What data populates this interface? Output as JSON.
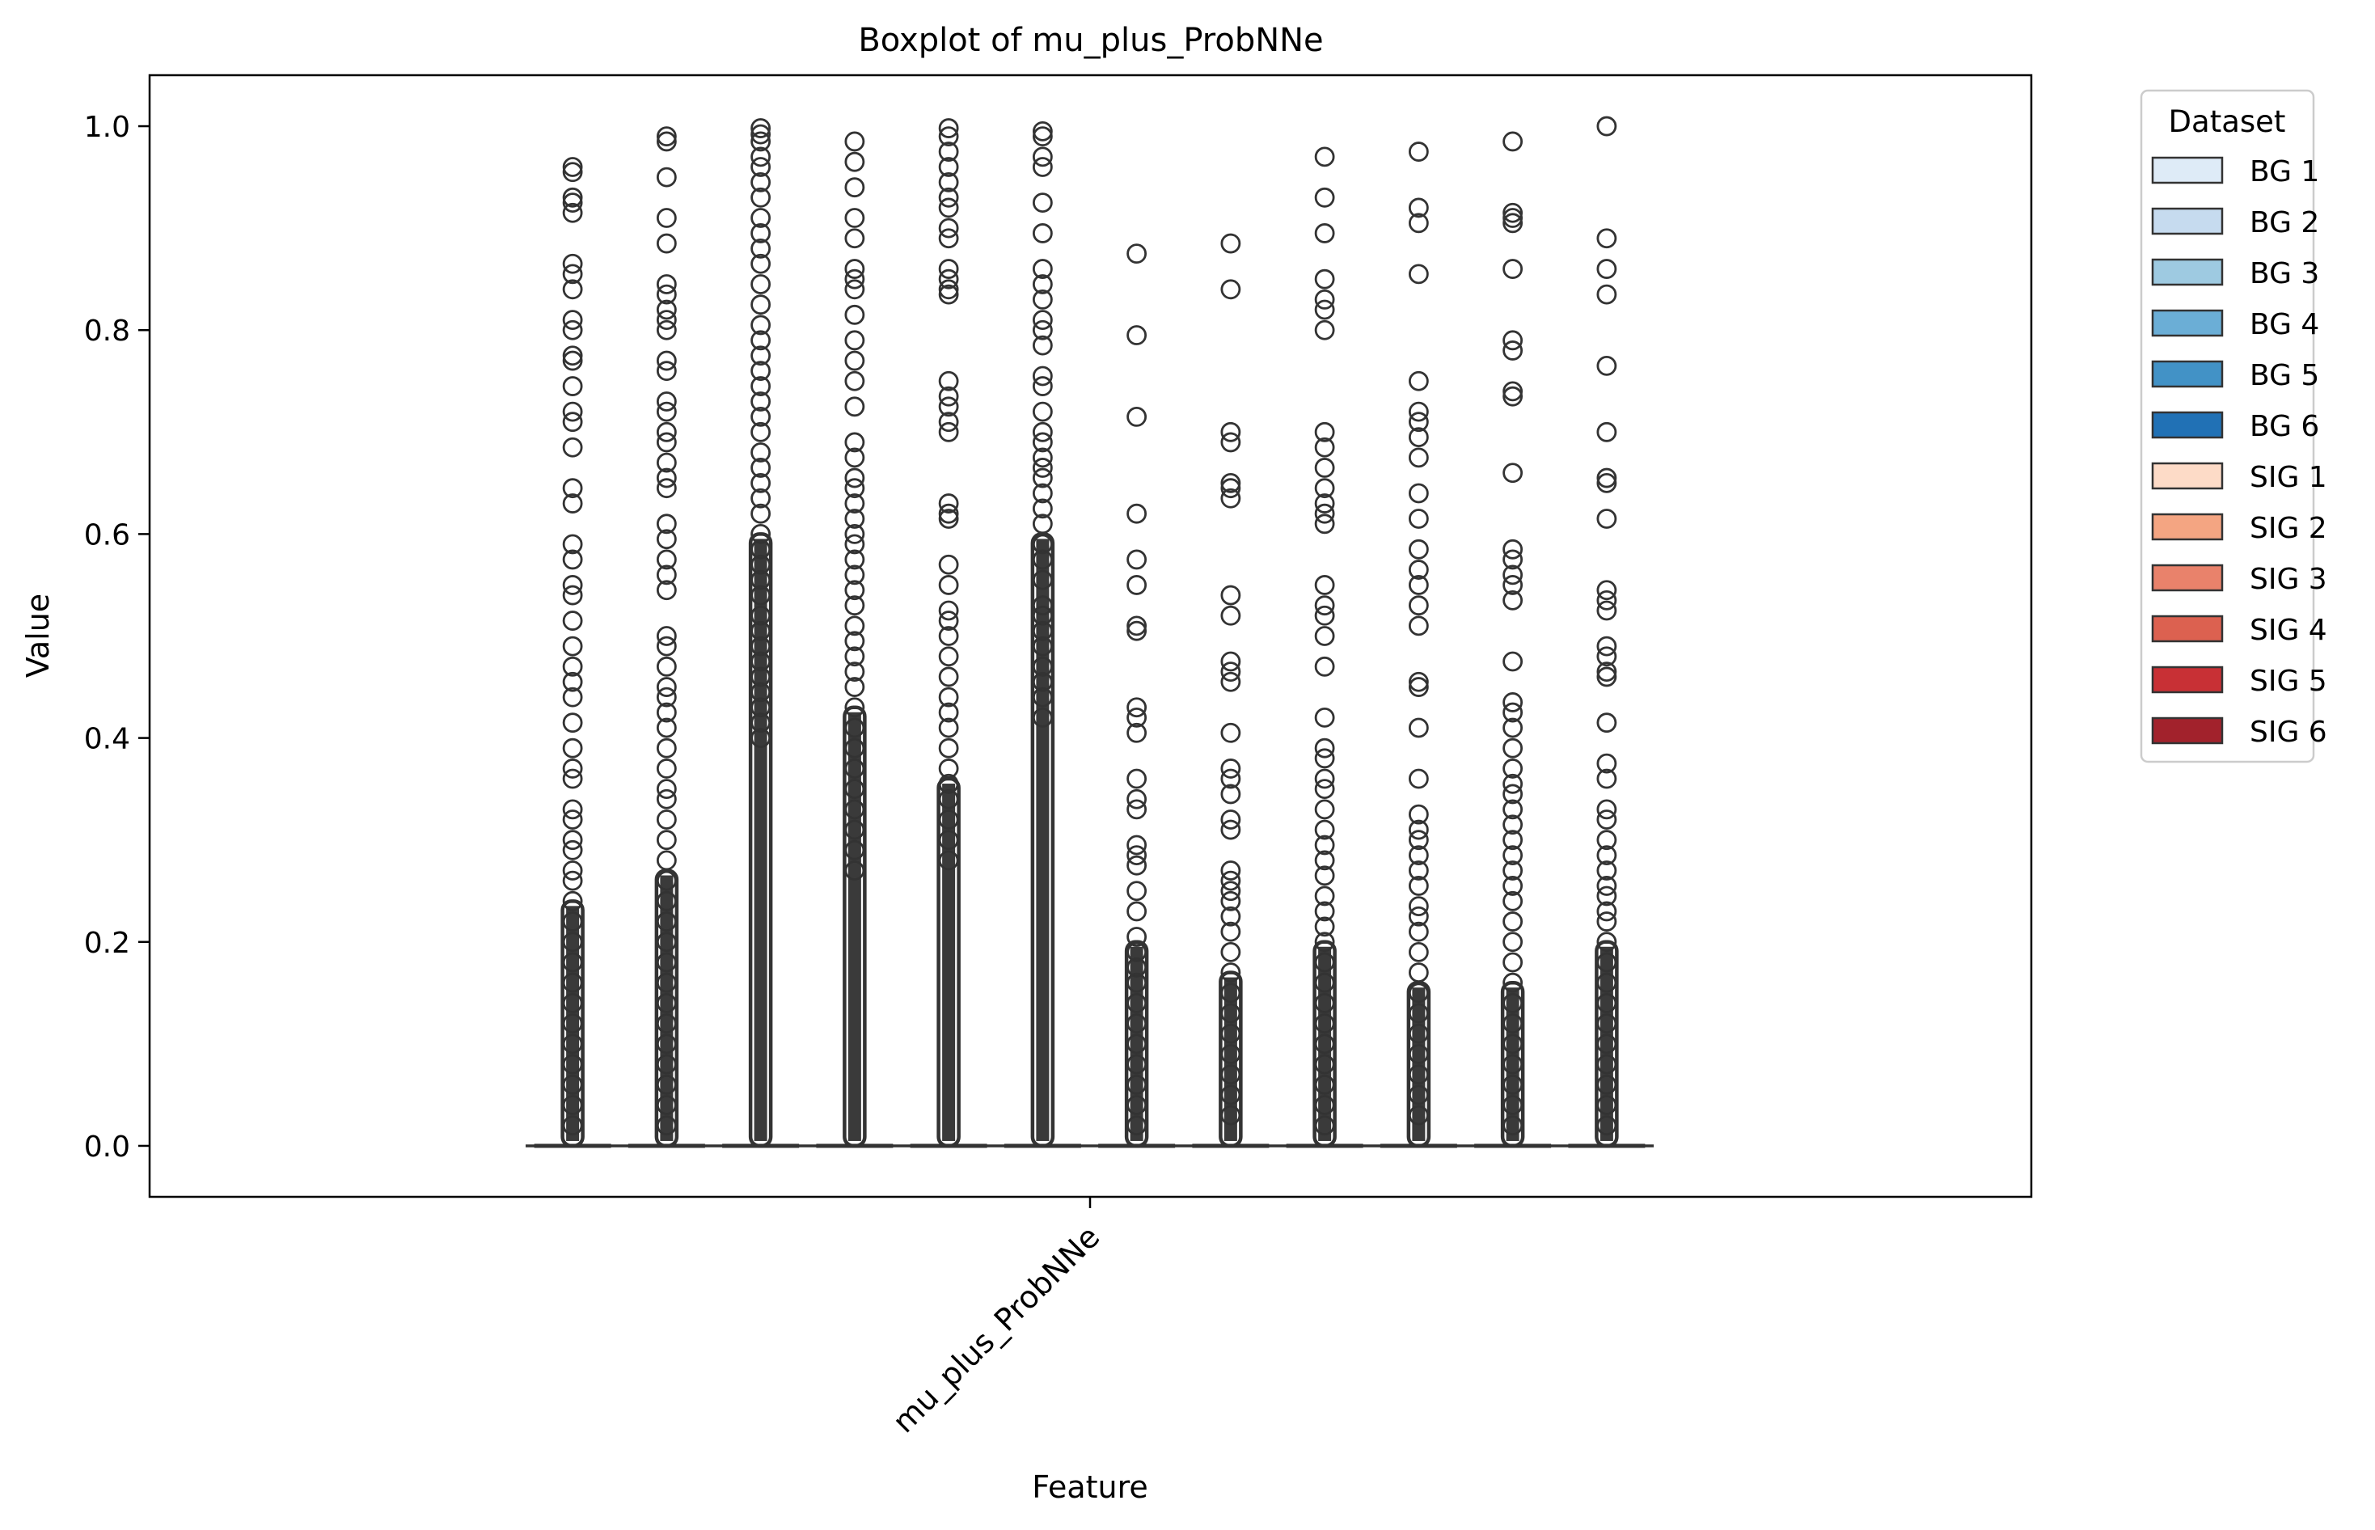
{
  "chart_data": {
    "type": "box",
    "title": "Boxplot of mu_plus_ProbNNe",
    "xlabel": "Feature",
    "ylabel": "Value",
    "categories": [
      "mu_plus_ProbNNe"
    ],
    "ylim": [
      -0.05,
      1.05
    ],
    "yticks": [
      "0.0",
      "0.2",
      "0.4",
      "0.6",
      "0.8",
      "1.0"
    ],
    "grid": false,
    "legend": {
      "title": "Dataset",
      "position": "outside-right"
    },
    "series": [
      {
        "name": "BG 1",
        "color": "#deebf7",
        "median": 0.0,
        "q1": 0.0,
        "q3": 0.0,
        "outliers": [
          0.96,
          0.955,
          0.93,
          0.925,
          0.915,
          0.865,
          0.855,
          0.84,
          0.81,
          0.8,
          0.775,
          0.77,
          0.745,
          0.72,
          0.71,
          0.685,
          0.645,
          0.63,
          0.59,
          0.575,
          0.55,
          0.54,
          0.515,
          0.49,
          0.47,
          0.455,
          0.44,
          0.415,
          0.39,
          0.37,
          0.36,
          0.33,
          0.32,
          0.3,
          0.29,
          0.27,
          0.26,
          0.24,
          0.22,
          0.2,
          0.18,
          0.16,
          0.14,
          0.12,
          0.1,
          0.08,
          0.06,
          0.04,
          0.02
        ],
        "dense_from": 0.24
      },
      {
        "name": "BG 2",
        "color": "#c6dbef",
        "median": 0.0,
        "q1": 0.0,
        "q3": 0.0,
        "outliers": [
          0.99,
          0.985,
          0.95,
          0.91,
          0.885,
          0.845,
          0.835,
          0.82,
          0.81,
          0.8,
          0.77,
          0.76,
          0.73,
          0.72,
          0.7,
          0.69,
          0.67,
          0.655,
          0.645,
          0.61,
          0.595,
          0.575,
          0.56,
          0.545,
          0.5,
          0.49,
          0.47,
          0.45,
          0.44,
          0.425,
          0.41,
          0.39,
          0.37,
          0.35,
          0.34,
          0.32,
          0.3,
          0.28,
          0.26,
          0.24,
          0.22,
          0.2,
          0.18,
          0.16,
          0.14,
          0.12,
          0.1,
          0.08,
          0.06,
          0.04,
          0.02
        ],
        "dense_from": 0.27
      },
      {
        "name": "BG 3",
        "color": "#9ecae1",
        "median": 0.0,
        "q1": 0.0,
        "q3": 0.0,
        "outliers": [
          0.998,
          0.992,
          0.985,
          0.97,
          0.96,
          0.945,
          0.93,
          0.91,
          0.895,
          0.88,
          0.865,
          0.845,
          0.825,
          0.805,
          0.79,
          0.775,
          0.76,
          0.745,
          0.73,
          0.715,
          0.7,
          0.68,
          0.665,
          0.65,
          0.635,
          0.62,
          0.6,
          0.585,
          0.57,
          0.555,
          0.54,
          0.52,
          0.505,
          0.49,
          0.475,
          0.46,
          0.445,
          0.43,
          0.415,
          0.4
        ],
        "dense_from": 0.6
      },
      {
        "name": "BG 4",
        "color": "#6baed6",
        "median": 0.0,
        "q1": 0.0,
        "q3": 0.0,
        "outliers": [
          0.985,
          0.965,
          0.94,
          0.91,
          0.89,
          0.86,
          0.85,
          0.84,
          0.815,
          0.79,
          0.77,
          0.75,
          0.725,
          0.69,
          0.675,
          0.655,
          0.645,
          0.63,
          0.615,
          0.6,
          0.59,
          0.575,
          0.56,
          0.545,
          0.53,
          0.51,
          0.495,
          0.48,
          0.465,
          0.45,
          0.43,
          0.41,
          0.39,
          0.37,
          0.35,
          0.33,
          0.31,
          0.29,
          0.27
        ],
        "dense_from": 0.43
      },
      {
        "name": "BG 5",
        "color": "#4292c6",
        "median": 0.0,
        "q1": 0.0,
        "q3": 0.0,
        "outliers": [
          0.998,
          0.99,
          0.975,
          0.96,
          0.945,
          0.93,
          0.92,
          0.9,
          0.89,
          0.86,
          0.85,
          0.84,
          0.835,
          0.75,
          0.735,
          0.725,
          0.71,
          0.7,
          0.63,
          0.62,
          0.615,
          0.57,
          0.55,
          0.525,
          0.515,
          0.5,
          0.48,
          0.46,
          0.44,
          0.425,
          0.41,
          0.39,
          0.37,
          0.355,
          0.34,
          0.32,
          0.3,
          0.28
        ],
        "dense_from": 0.36
      },
      {
        "name": "BG 6",
        "color": "#2171b5",
        "median": 0.0,
        "q1": 0.0,
        "q3": 0.0,
        "outliers": [
          0.995,
          0.99,
          0.97,
          0.96,
          0.925,
          0.895,
          0.86,
          0.845,
          0.83,
          0.81,
          0.8,
          0.785,
          0.755,
          0.745,
          0.72,
          0.7,
          0.69,
          0.675,
          0.665,
          0.655,
          0.64,
          0.625,
          0.61,
          0.59,
          0.575,
          0.555,
          0.53,
          0.52,
          0.505,
          0.49,
          0.47,
          0.455,
          0.44,
          0.42
        ],
        "dense_from": 0.6
      },
      {
        "name": "SIG 1",
        "color": "#fddbc7",
        "median": 0.0,
        "q1": 0.0,
        "q3": 0.0,
        "outliers": [
          0.875,
          0.795,
          0.715,
          0.62,
          0.575,
          0.55,
          0.51,
          0.505,
          0.43,
          0.42,
          0.405,
          0.36,
          0.34,
          0.33,
          0.295,
          0.285,
          0.275,
          0.25,
          0.23,
          0.205,
          0.19,
          0.175,
          0.16,
          0.14,
          0.12,
          0.1,
          0.08,
          0.06,
          0.04,
          0.02
        ],
        "dense_from": 0.2
      },
      {
        "name": "SIG 2",
        "color": "#f4a582",
        "median": 0.0,
        "q1": 0.0,
        "q3": 0.0,
        "outliers": [
          0.885,
          0.84,
          0.7,
          0.69,
          0.65,
          0.645,
          0.635,
          0.54,
          0.52,
          0.475,
          0.465,
          0.455,
          0.405,
          0.37,
          0.36,
          0.345,
          0.32,
          0.31,
          0.27,
          0.26,
          0.25,
          0.24,
          0.225,
          0.21,
          0.19,
          0.17,
          0.15,
          0.13,
          0.11,
          0.09,
          0.07,
          0.05,
          0.03
        ],
        "dense_from": 0.17
      },
      {
        "name": "SIG 3",
        "color": "#e9826b",
        "median": 0.0,
        "q1": 0.0,
        "q3": 0.0,
        "outliers": [
          0.97,
          0.93,
          0.895,
          0.85,
          0.83,
          0.82,
          0.8,
          0.7,
          0.685,
          0.665,
          0.645,
          0.63,
          0.62,
          0.61,
          0.55,
          0.53,
          0.52,
          0.5,
          0.47,
          0.42,
          0.39,
          0.38,
          0.36,
          0.35,
          0.33,
          0.31,
          0.295,
          0.28,
          0.265,
          0.245,
          0.23,
          0.215,
          0.2,
          0.18,
          0.16,
          0.14,
          0.12,
          0.1,
          0.08,
          0.06,
          0.04,
          0.02
        ],
        "dense_from": 0.2
      },
      {
        "name": "SIG 4",
        "color": "#dc6150",
        "median": 0.0,
        "q1": 0.0,
        "q3": 0.0,
        "outliers": [
          0.975,
          0.92,
          0.905,
          0.855,
          0.75,
          0.72,
          0.71,
          0.695,
          0.675,
          0.64,
          0.615,
          0.585,
          0.565,
          0.55,
          0.53,
          0.51,
          0.455,
          0.45,
          0.41,
          0.36,
          0.325,
          0.31,
          0.3,
          0.285,
          0.27,
          0.255,
          0.235,
          0.225,
          0.21,
          0.19,
          0.17,
          0.15,
          0.13,
          0.11,
          0.09,
          0.07,
          0.05,
          0.03
        ],
        "dense_from": 0.16
      },
      {
        "name": "SIG 5",
        "color": "#c83035",
        "median": 0.0,
        "q1": 0.0,
        "q3": 0.0,
        "outliers": [
          0.985,
          0.915,
          0.91,
          0.905,
          0.86,
          0.79,
          0.78,
          0.74,
          0.735,
          0.66,
          0.585,
          0.575,
          0.56,
          0.55,
          0.535,
          0.475,
          0.435,
          0.425,
          0.41,
          0.39,
          0.37,
          0.355,
          0.345,
          0.33,
          0.315,
          0.3,
          0.285,
          0.27,
          0.255,
          0.24,
          0.22,
          0.2,
          0.18,
          0.16,
          0.14,
          0.12,
          0.1,
          0.08,
          0.06,
          0.04,
          0.02
        ],
        "dense_from": 0.16
      },
      {
        "name": "SIG 6",
        "color": "#a2222c",
        "median": 0.0,
        "q1": 0.0,
        "q3": 0.0,
        "outliers": [
          1.0,
          0.89,
          0.86,
          0.835,
          0.765,
          0.7,
          0.655,
          0.65,
          0.615,
          0.545,
          0.535,
          0.525,
          0.49,
          0.48,
          0.465,
          0.46,
          0.415,
          0.375,
          0.36,
          0.33,
          0.32,
          0.3,
          0.285,
          0.27,
          0.255,
          0.245,
          0.23,
          0.22,
          0.2,
          0.18,
          0.16,
          0.14,
          0.12,
          0.1,
          0.08,
          0.06,
          0.04,
          0.02
        ],
        "dense_from": 0.2
      }
    ]
  }
}
